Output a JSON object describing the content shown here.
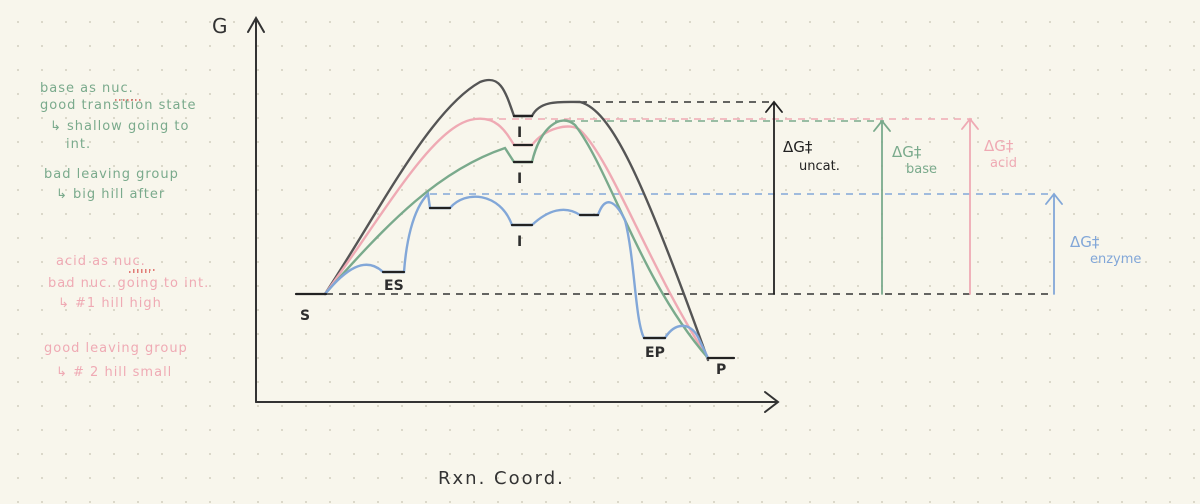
{
  "diagram": {
    "axis_y_label": "G",
    "axis_x_label": "Rxn. Coord.",
    "state_labels": {
      "substrate": "S",
      "enzyme_substrate": "ES",
      "intermediate": "I",
      "enzyme_product": "EP",
      "product": "P"
    },
    "barriers": {
      "uncatalyzed": {
        "symbol": "ΔG‡",
        "label": "uncat."
      },
      "base": {
        "symbol": "ΔG‡",
        "label": "base"
      },
      "acid": {
        "symbol": "ΔG‡",
        "label": "acid"
      },
      "enzyme": {
        "symbol": "ΔG‡",
        "label": "enzyme"
      }
    }
  },
  "notes": {
    "base": [
      "base as nuc.",
      "good transition state",
      "↳ shallow going to",
      "int.",
      "bad leaving group",
      "↳ big hill after"
    ],
    "acid": [
      "acid as nuc.",
      "bad nuc. going to int.",
      "↳ #1 hill high",
      "good leaving group",
      "↳ # 2 hill small"
    ]
  },
  "colors": {
    "uncatalyzed": "#555555",
    "base": "#7aaa8c",
    "acid": "#efaab4",
    "enzyme": "#82a7d8",
    "background": "#f8f6ec",
    "axis": "#333333"
  }
}
